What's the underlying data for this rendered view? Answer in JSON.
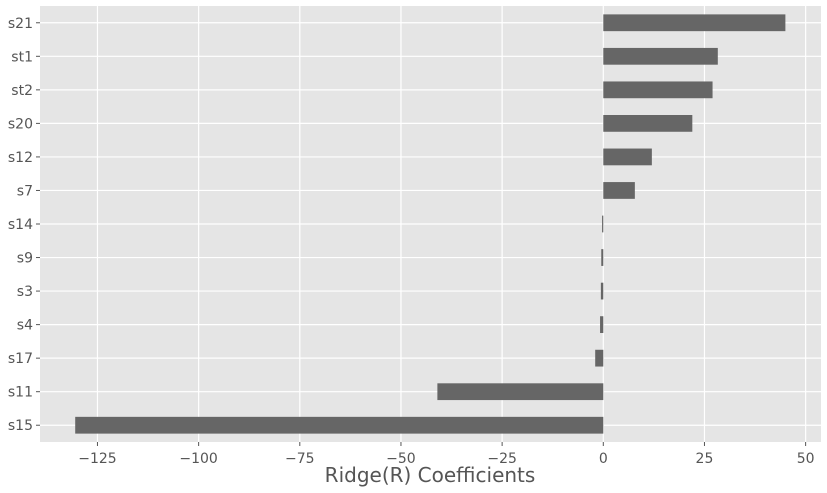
{
  "chart_data": {
    "type": "bar",
    "orientation": "horizontal",
    "categories": [
      "s15",
      "s11",
      "s17",
      "s4",
      "s3",
      "s9",
      "s14",
      "s7",
      "s12",
      "s20",
      "st2",
      "st1",
      "s21"
    ],
    "values": [
      -130.5,
      -41,
      -2,
      -0.8,
      -0.6,
      -0.5,
      -0.3,
      7.8,
      12,
      22,
      27,
      28.3,
      45
    ],
    "xlabel": "Ridge(R) Coefficients",
    "ylabel": "",
    "xlim": [
      -139.2,
      53.8
    ],
    "xticks": [
      -125,
      -100,
      -75,
      -50,
      -25,
      0,
      25,
      50
    ],
    "xtick_labels": [
      "−125",
      "−100",
      "−75",
      "−50",
      "−25",
      "0",
      "25",
      "50"
    ],
    "grid": true,
    "colors": {
      "bar": "#666666",
      "background": "#e5e5e5",
      "grid": "#ffffff",
      "text": "#555555"
    }
  }
}
